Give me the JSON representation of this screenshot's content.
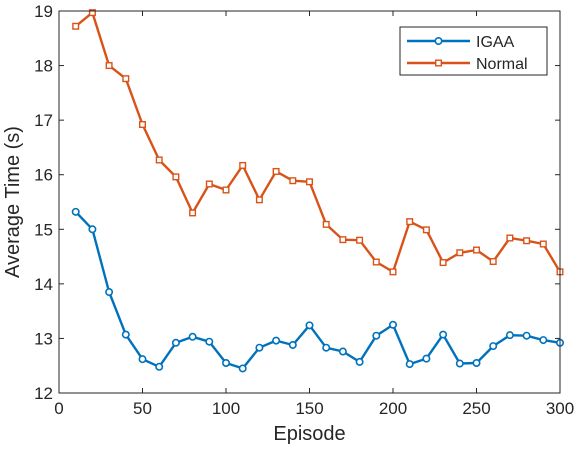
{
  "chart_data": {
    "type": "line",
    "xlabel": "Episode",
    "ylabel": "Average Time (s)",
    "xlim": [
      0,
      300
    ],
    "ylim": [
      12,
      19
    ],
    "xticks": [
      0,
      50,
      100,
      150,
      200,
      250,
      300
    ],
    "yticks": [
      12,
      13,
      14,
      15,
      16,
      17,
      18,
      19
    ],
    "grid": false,
    "legend_position": "top-right",
    "x": [
      10,
      20,
      30,
      40,
      50,
      60,
      70,
      80,
      90,
      100,
      110,
      120,
      130,
      140,
      150,
      160,
      170,
      180,
      190,
      200,
      210,
      220,
      230,
      240,
      250,
      260,
      270,
      280,
      290,
      300
    ],
    "series": [
      {
        "name": "IGAA",
        "color": "#0072BD",
        "marker": "circle",
        "values": [
          15.32,
          15.0,
          13.85,
          13.07,
          12.62,
          12.48,
          12.92,
          13.03,
          12.94,
          12.55,
          12.45,
          12.83,
          12.96,
          12.88,
          13.24,
          12.83,
          12.76,
          12.57,
          13.05,
          13.25,
          12.53,
          12.63,
          13.07,
          12.54,
          12.55,
          12.86,
          13.06,
          13.05,
          12.97,
          12.92
        ]
      },
      {
        "name": "Normal",
        "color": "#D95319",
        "marker": "square",
        "values": [
          18.72,
          18.97,
          18.0,
          17.76,
          16.92,
          16.27,
          15.96,
          15.3,
          15.83,
          15.72,
          16.17,
          15.54,
          16.06,
          15.89,
          15.87,
          15.09,
          14.81,
          14.8,
          14.4,
          14.22,
          15.14,
          14.99,
          14.39,
          14.57,
          14.62,
          14.41,
          14.84,
          14.79,
          14.73,
          14.22
        ]
      }
    ]
  }
}
